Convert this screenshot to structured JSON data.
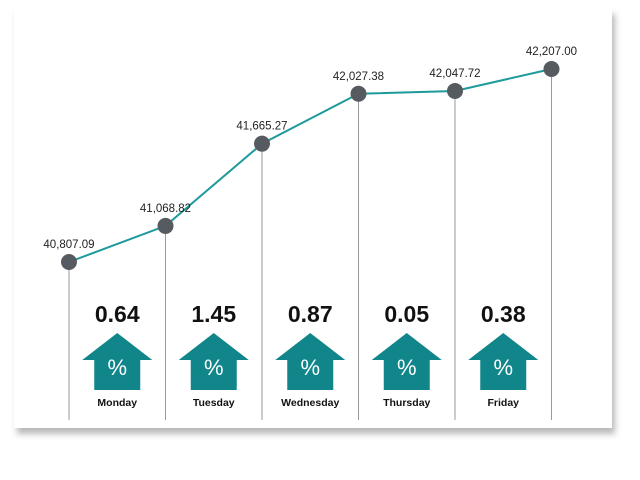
{
  "chart_data": {
    "type": "line",
    "categories": [
      "Monday",
      "Tuesday",
      "Wednesday",
      "Thursday",
      "Friday"
    ],
    "line_points": [
      {
        "value": 40807.09,
        "label": "40,807.09"
      },
      {
        "value": 41068.82,
        "label": "41,068.82"
      },
      {
        "value": 41665.27,
        "label": "41,665.27"
      },
      {
        "value": 42027.38,
        "label": "42,027.38"
      },
      {
        "value": 42047.72,
        "label": "42,047.72"
      },
      {
        "value": 42207.0,
        "label": "42,207.00"
      }
    ],
    "percent_changes": [
      {
        "day": "Monday",
        "value": 0.64,
        "label": "0.64",
        "direction": "up"
      },
      {
        "day": "Tuesday",
        "value": 1.45,
        "label": "1.45",
        "direction": "up"
      },
      {
        "day": "Wednesday",
        "value": 0.87,
        "label": "0.87",
        "direction": "up"
      },
      {
        "day": "Thursday",
        "value": 0.05,
        "label": "0.05",
        "direction": "up"
      },
      {
        "day": "Friday",
        "value": 0.38,
        "label": "0.38",
        "direction": "up"
      }
    ],
    "percent_symbol": "%",
    "ylim": [
      40807.09,
      42207.0
    ],
    "grid": false,
    "colors": {
      "line": "#1e9a9a",
      "marker": "#555b60",
      "arrow": "#11868a",
      "drop_line": "#9a9a9a"
    }
  }
}
